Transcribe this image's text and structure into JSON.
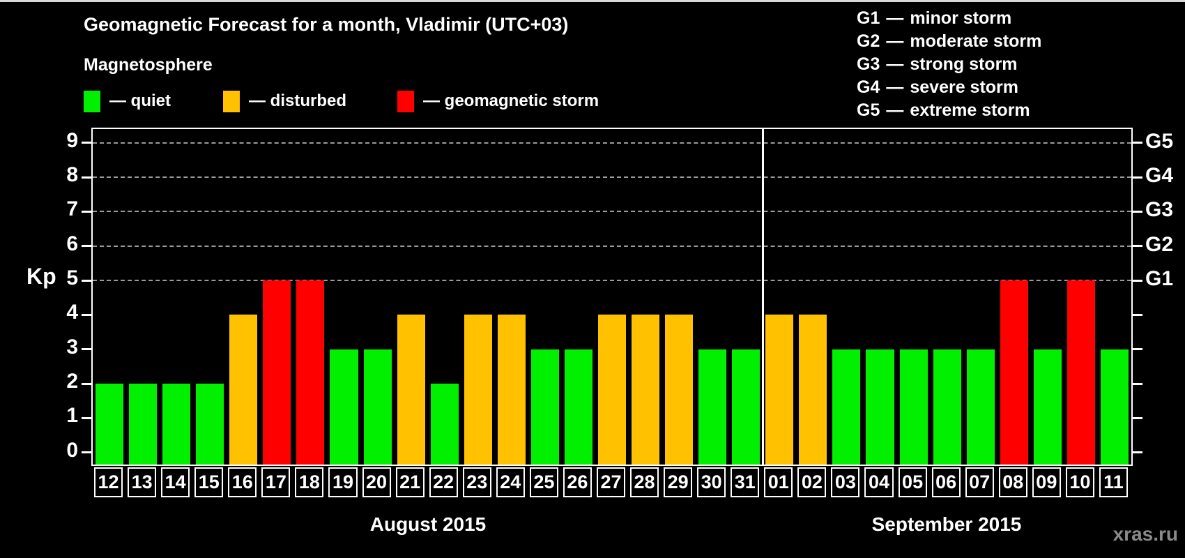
{
  "page": {
    "title": "Geomagnetic Forecast for a month, Vladimir (UTC+03)",
    "subtitle": "Magnetosphere",
    "watermark": "xras.ru"
  },
  "legend": {
    "items": [
      {
        "key": "quiet",
        "label": "— quiet",
        "color": "#00f000"
      },
      {
        "key": "disturbed",
        "label": "— disturbed",
        "color": "#ffc100"
      },
      {
        "key": "storm",
        "label": "— geomagnetic storm",
        "color": "#ff0000"
      }
    ]
  },
  "g_scale_legend": {
    "separator": "—",
    "items": [
      {
        "code": "G1",
        "desc": "minor storm"
      },
      {
        "code": "G2",
        "desc": "moderate storm"
      },
      {
        "code": "G3",
        "desc": "strong storm"
      },
      {
        "code": "G4",
        "desc": "severe storm"
      },
      {
        "code": "G5",
        "desc": "extreme storm"
      }
    ]
  },
  "chart_data": {
    "type": "bar",
    "title": "Geomagnetic Forecast for a month, Vladimir (UTC+03)",
    "ylabel": "Kp",
    "ylim": [
      0,
      9
    ],
    "yticks": [
      0,
      1,
      2,
      3,
      4,
      5,
      6,
      7,
      8,
      9
    ],
    "grid": "horizontal dashed lines at Kp 5-9 only",
    "legend_position": "top",
    "g_levels": [
      {
        "kp": 5,
        "label": "G1"
      },
      {
        "kp": 6,
        "label": "G2"
      },
      {
        "kp": 7,
        "label": "G3"
      },
      {
        "kp": 8,
        "label": "G4"
      },
      {
        "kp": 9,
        "label": "G5"
      }
    ],
    "status_colors": {
      "quiet": "#00f000",
      "disturbed": "#ffc100",
      "storm": "#ff0000"
    },
    "months": [
      {
        "key": "aug",
        "label": "August 2015",
        "days": [
          {
            "day": "12",
            "kp": 2,
            "status": "quiet"
          },
          {
            "day": "13",
            "kp": 2,
            "status": "quiet"
          },
          {
            "day": "14",
            "kp": 2,
            "status": "quiet"
          },
          {
            "day": "15",
            "kp": 2,
            "status": "quiet"
          },
          {
            "day": "16",
            "kp": 4,
            "status": "disturbed"
          },
          {
            "day": "17",
            "kp": 5,
            "status": "storm"
          },
          {
            "day": "18",
            "kp": 5,
            "status": "storm"
          },
          {
            "day": "19",
            "kp": 3,
            "status": "quiet"
          },
          {
            "day": "20",
            "kp": 3,
            "status": "quiet"
          },
          {
            "day": "21",
            "kp": 4,
            "status": "disturbed"
          },
          {
            "day": "22",
            "kp": 2,
            "status": "quiet"
          },
          {
            "day": "23",
            "kp": 4,
            "status": "disturbed"
          },
          {
            "day": "24",
            "kp": 4,
            "status": "disturbed"
          },
          {
            "day": "25",
            "kp": 3,
            "status": "quiet"
          },
          {
            "day": "26",
            "kp": 3,
            "status": "quiet"
          },
          {
            "day": "27",
            "kp": 4,
            "status": "disturbed"
          },
          {
            "day": "28",
            "kp": 4,
            "status": "disturbed"
          },
          {
            "day": "29",
            "kp": 4,
            "status": "disturbed"
          },
          {
            "day": "30",
            "kp": 3,
            "status": "quiet"
          },
          {
            "day": "31",
            "kp": 3,
            "status": "quiet"
          }
        ]
      },
      {
        "key": "sep",
        "label": "September 2015",
        "days": [
          {
            "day": "01",
            "kp": 4,
            "status": "disturbed"
          },
          {
            "day": "02",
            "kp": 4,
            "status": "disturbed"
          },
          {
            "day": "03",
            "kp": 3,
            "status": "quiet"
          },
          {
            "day": "04",
            "kp": 3,
            "status": "quiet"
          },
          {
            "day": "05",
            "kp": 3,
            "status": "quiet"
          },
          {
            "day": "06",
            "kp": 3,
            "status": "quiet"
          },
          {
            "day": "07",
            "kp": 3,
            "status": "quiet"
          },
          {
            "day": "08",
            "kp": 5,
            "status": "storm"
          },
          {
            "day": "09",
            "kp": 3,
            "status": "quiet"
          },
          {
            "day": "10",
            "kp": 5,
            "status": "storm"
          },
          {
            "day": "11",
            "kp": 3,
            "status": "quiet"
          }
        ]
      }
    ]
  }
}
